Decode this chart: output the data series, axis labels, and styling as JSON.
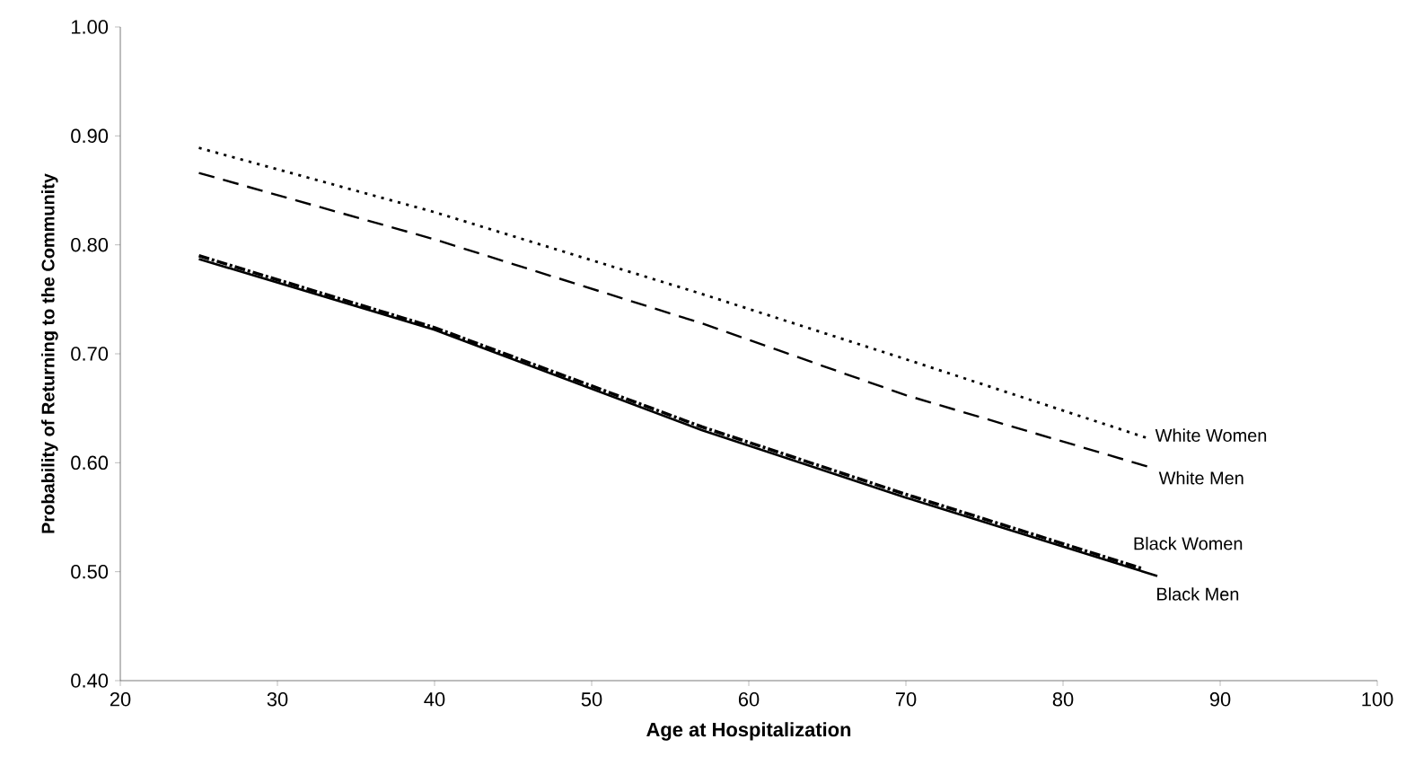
{
  "chart_data": {
    "type": "line",
    "xlabel": "Age at Hospitalization",
    "ylabel": "Probability of Returning to the Community",
    "xlim": [
      20,
      100
    ],
    "xticks": [
      20,
      30,
      40,
      50,
      60,
      70,
      80,
      90,
      100
    ],
    "ylim": [
      0.4,
      1.0
    ],
    "yticks": [
      {
        "value": 0.4,
        "label": "0.40"
      },
      {
        "value": 0.5,
        "label": "0.50"
      },
      {
        "value": 0.6,
        "label": "0.60"
      },
      {
        "value": 0.7,
        "label": "0.70"
      },
      {
        "value": 0.8,
        "label": "0.80"
      },
      {
        "value": 0.9,
        "label": "0.90"
      },
      {
        "value": 1.0,
        "label": "1.00"
      }
    ],
    "legend": false,
    "grid": false,
    "series": [
      {
        "name": "White Women",
        "color": "#000000",
        "line_style": "dotted",
        "x": [
          25,
          40,
          57,
          70,
          85.5
        ],
        "values": [
          0.889,
          0.83,
          0.755,
          0.695,
          0.622
        ]
      },
      {
        "name": "White Men",
        "color": "#000000",
        "line_style": "dashed",
        "x": [
          25,
          40,
          57,
          70,
          85.5
        ],
        "values": [
          0.866,
          0.805,
          0.728,
          0.662,
          0.596
        ]
      },
      {
        "name": "Black Women",
        "color": "#000000",
        "line_style": "dashdot",
        "x": [
          25,
          40,
          57,
          70,
          85
        ],
        "values": [
          0.79,
          0.724,
          0.633,
          0.571,
          0.503
        ]
      },
      {
        "name": "Black Men",
        "color": "#000000",
        "line_style": "solid",
        "x": [
          25,
          40,
          57,
          70,
          86
        ],
        "values": [
          0.787,
          0.722,
          0.63,
          0.568,
          0.496
        ]
      }
    ]
  }
}
